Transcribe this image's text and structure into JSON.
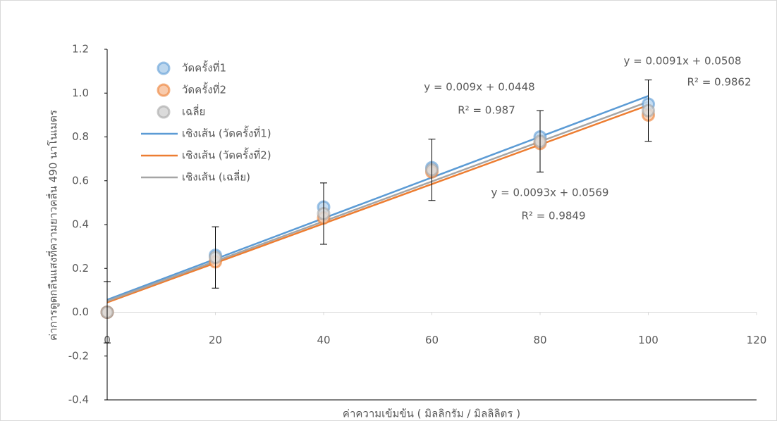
{
  "chart_data": {
    "type": "scatter",
    "x_axis_label": "ค่าความเข้มข้น ( มิลลิกรัม / มิลลิลิตร )",
    "y_axis_label": "ค่าการดูดกลืนแสงที่ความยาวคลื่น 490 นาโนเมตร",
    "xlim": [
      0,
      120
    ],
    "xticks": [
      0,
      20,
      40,
      60,
      80,
      100,
      120
    ],
    "ylim": [
      -0.4,
      1.2
    ],
    "yticks": [
      -0.4,
      -0.2,
      {
        "value": 0,
        "label": "0.0"
      },
      0.2,
      0.4,
      0.6,
      0.8,
      {
        "value": 1,
        "label": "1.0"
      },
      1.2
    ],
    "x": [
      0,
      20,
      40,
      60,
      80,
      100
    ],
    "series": [
      {
        "name": "วัดครั้งที่1",
        "color": "#5b9bd5",
        "values": [
          0,
          0.26,
          0.48,
          0.66,
          0.8,
          0.95
        ]
      },
      {
        "name": "วัดครั้งที่2",
        "color": "#ed7d31",
        "values": [
          0,
          0.23,
          0.43,
          0.64,
          0.77,
          0.9
        ]
      },
      {
        "name": "เฉลี่ย",
        "color": "#a5a5a5",
        "values": [
          0,
          0.25,
          0.45,
          0.65,
          0.78,
          0.92
        ],
        "errors": [
          0.14,
          0.14,
          0.14,
          0.14,
          0.14,
          0.14
        ]
      }
    ],
    "trendlines": [
      {
        "name": "เชิงเส้น (วัดครั้งที่1)",
        "color": "#5b9bd5",
        "slope": 0.0093,
        "intercept": 0.0569,
        "equation": "y = 0.0093x + 0.0569",
        "r_squared": "R² = 0.9849"
      },
      {
        "name": "เชิงเส้น (วัดครั้งที่2)",
        "color": "#ed7d31",
        "slope": 0.009,
        "intercept": 0.0448,
        "equation": "y = 0.009x + 0.0448",
        "r_squared": "R² = 0.987"
      },
      {
        "name": "เชิงเส้น (เฉลี่ย)",
        "color": "#a5a5a5",
        "slope": 0.0091,
        "intercept": 0.0508,
        "equation": "y = 0.0091x + 0.0508",
        "r_squared": "R² = 0.9862"
      }
    ]
  }
}
